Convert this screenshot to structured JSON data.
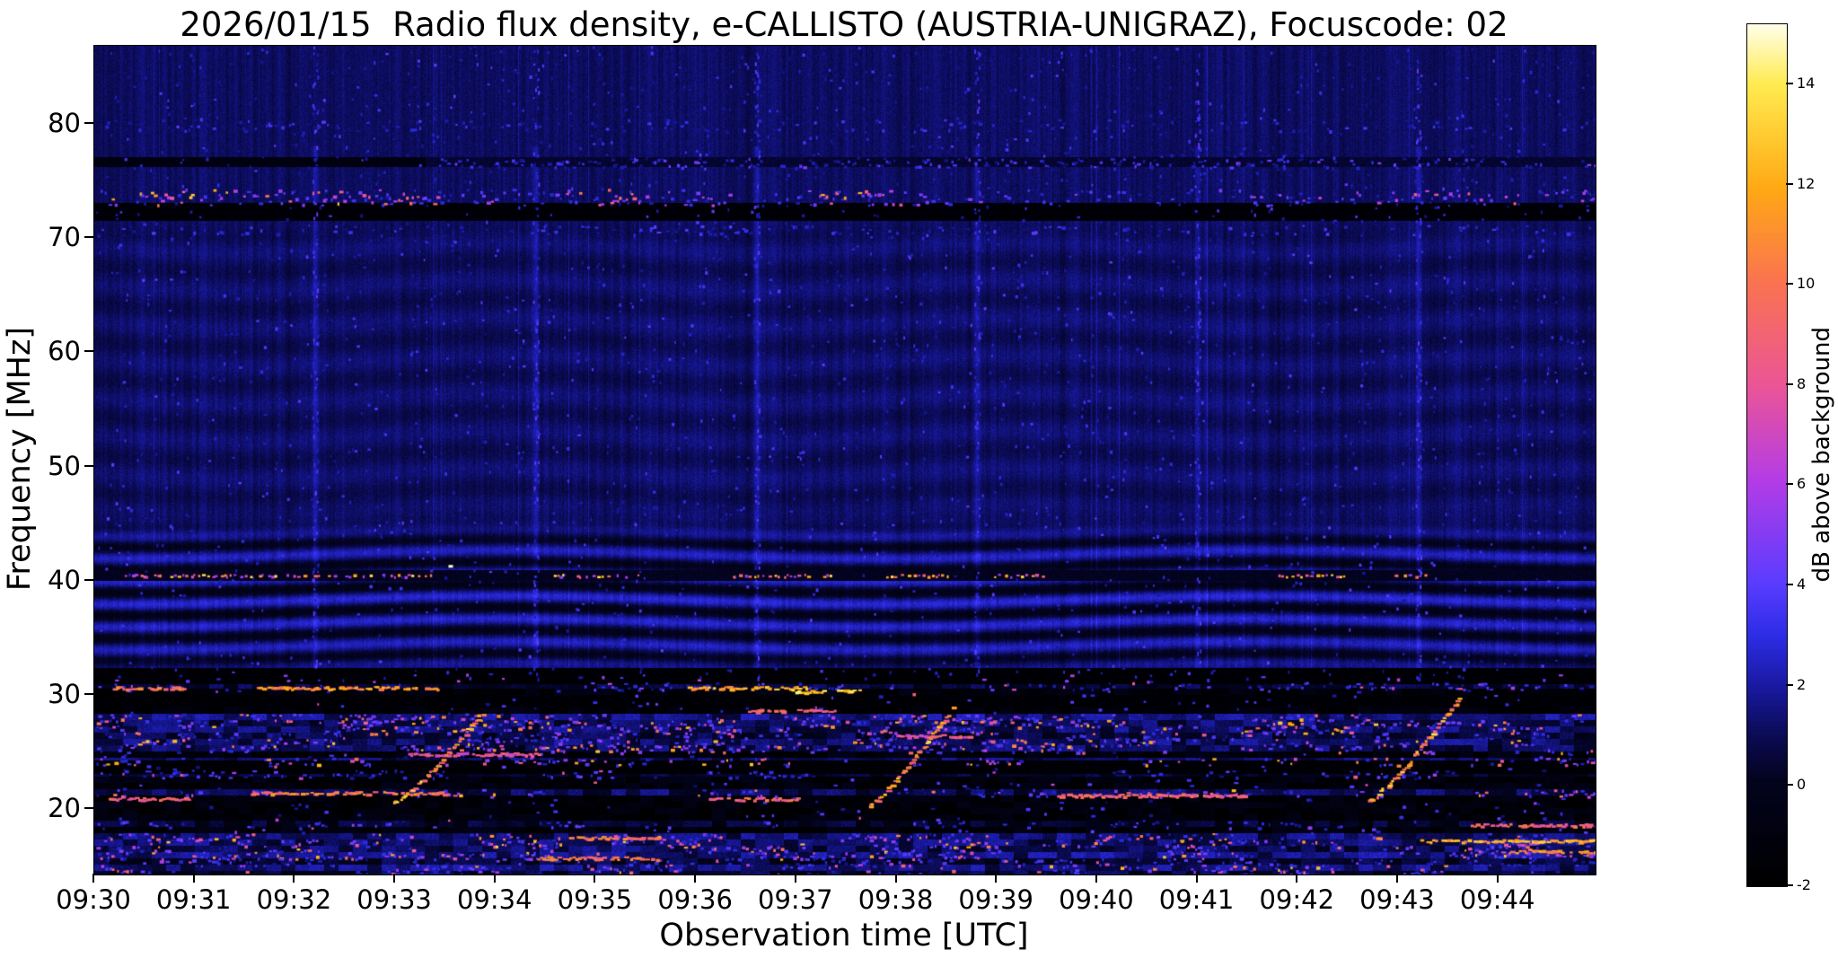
{
  "figure": {
    "title": "2026/01/15  Radio flux density, e-CALLISTO (AUSTRIA-UNIGRAZ), Focuscode: 02",
    "xlabel": "Observation time [UTC]",
    "ylabel": "Frequency [MHz]",
    "colorbar_label": "dB above background"
  },
  "chart_data": {
    "type": "heatmap",
    "title": "2026/01/15  Radio flux density, e-CALLISTO (AUSTRIA-UNIGRAZ), Focuscode: 02",
    "date": "2026/01/15",
    "station": "AUSTRIA-UNIGRAZ",
    "focuscode": "02",
    "xlabel": "Observation time [UTC]",
    "ylabel": "Frequency [MHz]",
    "x_ticks": [
      "09:30",
      "09:31",
      "09:32",
      "09:33",
      "09:34",
      "09:35",
      "09:36",
      "09:37",
      "09:38",
      "09:39",
      "09:40",
      "09:41",
      "09:42",
      "09:43",
      "09:44"
    ],
    "x_range": {
      "start_utc": "09:30",
      "minutes_shown": 14.97
    },
    "y_ticks": [
      20,
      30,
      40,
      50,
      60,
      70,
      80
    ],
    "y_range_mhz": [
      14.3,
      86.8
    ],
    "background_db": 1.15,
    "colorbar": {
      "label": "dB above background",
      "ticks": [
        -2,
        0,
        2,
        4,
        6,
        8,
        10,
        12,
        14
      ],
      "range_db": [
        -2,
        15.2
      ],
      "colormap_stops": [
        [
          0.0,
          "#000000"
        ],
        [
          0.12,
          "#03031e"
        ],
        [
          0.17,
          "#0a0a50"
        ],
        [
          0.23,
          "#1919a0"
        ],
        [
          0.29,
          "#2d2de6"
        ],
        [
          0.35,
          "#5a3cff"
        ],
        [
          0.47,
          "#b43ce6"
        ],
        [
          0.58,
          "#eb5596"
        ],
        [
          0.7,
          "#fa7350"
        ],
        [
          0.81,
          "#ffaa14"
        ],
        [
          0.93,
          "#ffeb50"
        ],
        [
          1.0,
          "#ffffeb"
        ]
      ]
    },
    "ripples": [
      {
        "f": [
          31.8,
          45.2
        ],
        "wavelength_mhz": 2.0,
        "amp_db": 1.05,
        "edge0": 1.5,
        "edge1": 2.0,
        "sway_period_min": 7.5,
        "sway_phase_min": 0.3,
        "sway_amp": 1.15,
        "boost": {
          "f": 38.5,
          "sigma2": 20,
          "amount": 0.45
        }
      },
      {
        "f": [
          45.2,
          71.5
        ],
        "wavelength_mhz": 3.3,
        "amp_db": 0.28,
        "edge0": 2.0,
        "edge1": 2.0,
        "sway_period_min": 5.2,
        "sway_phase_min": 1.4,
        "sway_amp": 0.9,
        "boost": null
      }
    ],
    "vertical_lines": {
      "times_min": [
        2.2,
        4.4,
        6.6,
        8.8,
        11.0,
        13.2
      ],
      "amp_db": 0.85,
      "f_range": [
        31.5,
        78.0
      ]
    },
    "features": [
      {
        "kind": "dark_band",
        "f": [
          71.6,
          73.0
        ],
        "t": [
          0,
          15
        ],
        "level": -1.5,
        "jitter": 1.0
      },
      {
        "kind": "speckle_band",
        "f": [
          72.9,
          74.3
        ],
        "segments": [
          {
            "t": [
              0.0,
              3.4
            ],
            "density": 0.75,
            "db": [
              3,
              13
            ]
          },
          {
            "t": [
              3.4,
              4.7
            ],
            "density": 0.55,
            "db": [
              2,
              8
            ]
          },
          {
            "t": [
              4.7,
              5.4
            ],
            "density": 0.7,
            "db": [
              3,
              12
            ]
          },
          {
            "t": [
              5.4,
              7.2
            ],
            "density": 0.5,
            "db": [
              2,
              7
            ]
          },
          {
            "t": [
              7.2,
              8.1
            ],
            "density": 0.65,
            "db": [
              3,
              12
            ]
          },
          {
            "t": [
              8.1,
              9.9
            ],
            "density": 0.45,
            "db": [
              2,
              7
            ]
          },
          {
            "t": [
              9.9,
              11.4
            ],
            "density": 0.2,
            "db": [
              2,
              5
            ]
          },
          {
            "t": [
              11.4,
              13.1
            ],
            "density": 0.45,
            "db": [
              2,
              7
            ]
          },
          {
            "t": [
              13.1,
              14.2
            ],
            "density": 0.6,
            "db": [
              3,
              11
            ]
          },
          {
            "t": [
              14.2,
              14.97
            ],
            "density": 0.45,
            "db": [
              2,
              7
            ]
          }
        ]
      },
      {
        "kind": "dark_band",
        "f": [
          76.3,
          77.0
        ],
        "t": [
          0,
          3.3
        ],
        "level": -0.9,
        "jitter": 0.5
      },
      {
        "kind": "dark_band",
        "f": [
          76.3,
          77.0
        ],
        "t": [
          3.3,
          15
        ],
        "level": 0.4,
        "jitter": 0.7
      },
      {
        "kind": "speckle_band",
        "f": [
          76.2,
          77.0
        ],
        "segments": [
          {
            "t": [
              3.3,
              14.97
            ],
            "density": 0.5,
            "db": [
              1.5,
              5
            ]
          }
        ]
      },
      {
        "kind": "speckle_band",
        "f": [
          79.4,
          80.4
        ],
        "segments": [
          {
            "t": [
              0,
              14.97
            ],
            "density": 0.3,
            "db": [
              1.5,
              4
            ]
          }
        ]
      },
      {
        "kind": "speckle_band",
        "f": [
          70.4,
          71.1
        ],
        "segments": [
          {
            "t": [
              0,
              14.97
            ],
            "density": 0.22,
            "db": [
              1.5,
              4
            ]
          },
          {
            "t": [
              5.4,
              6.6
            ],
            "density": 0.5,
            "db": [
              1.5,
              4.5
            ]
          }
        ]
      },
      {
        "kind": "dark_band",
        "f": [
          40.1,
          40.9
        ],
        "t": [
          0,
          15
        ],
        "level": 0.0,
        "jitter": 0.8
      },
      {
        "kind": "dot_row",
        "f": 40.5,
        "db": [
          5,
          14
        ],
        "clusters": [
          [
            0.25,
            3.3
          ],
          [
            4.55,
            5.4
          ],
          [
            6.3,
            7.3
          ],
          [
            7.85,
            8.45
          ],
          [
            8.95,
            9.4
          ],
          [
            11.75,
            12.45
          ],
          [
            12.9,
            13.45
          ]
        ]
      },
      {
        "kind": "dot",
        "t": 3.55,
        "f": 41.3,
        "db": 15,
        "w": 5,
        "h": 3
      },
      {
        "kind": "black_row",
        "f": [
          31.1,
          32.3
        ]
      },
      {
        "kind": "black_row",
        "f": [
          23.2,
          24.2
        ]
      },
      {
        "kind": "black_row",
        "f": [
          29.1,
          29.9
        ]
      },
      {
        "kind": "speckle_band",
        "f": [
          31.2,
          32.2
        ],
        "segments": [
          {
            "t": [
              0,
              14.97
            ],
            "density": 0.09,
            "db": [
              2,
              7
            ]
          }
        ]
      },
      {
        "kind": "rfi_region",
        "f": [
          14.3,
          31.1
        ],
        "row_height_mhz": 0.55
      },
      {
        "kind": "hseg",
        "f": 30.6,
        "t": [
          0.15,
          0.9
        ],
        "db": 10
      },
      {
        "kind": "hseg",
        "f": 30.6,
        "t": [
          1.6,
          3.4
        ],
        "db": 11
      },
      {
        "kind": "hseg",
        "f": 30.6,
        "t": [
          5.9,
          7.1
        ],
        "db": 12
      },
      {
        "kind": "hseg",
        "f": 30.3,
        "t": [
          6.9,
          7.6
        ],
        "db": 13
      },
      {
        "kind": "hseg",
        "f": 28.6,
        "t": [
          6.5,
          7.35
        ],
        "db": 9
      },
      {
        "kind": "hseg",
        "f": 21.4,
        "t": [
          1.5,
          3.5
        ],
        "db": 10
      },
      {
        "kind": "hseg",
        "f": 21.2,
        "t": [
          9.55,
          11.45
        ],
        "db": 9
      },
      {
        "kind": "hseg",
        "f": 20.9,
        "t": [
          0.1,
          0.9
        ],
        "db": 9
      },
      {
        "kind": "hseg",
        "f": 20.9,
        "t": [
          6.1,
          7.0
        ],
        "db": 9
      },
      {
        "kind": "hseg",
        "f": 24.8,
        "t": [
          3.1,
          4.4
        ],
        "db": 8
      },
      {
        "kind": "hseg",
        "f": 26.4,
        "t": [
          7.9,
          8.7
        ],
        "db": 8
      },
      {
        "kind": "hseg",
        "f": 17.5,
        "t": [
          4.7,
          5.6
        ],
        "db": 10
      },
      {
        "kind": "hseg",
        "f": 15.7,
        "t": [
          4.4,
          5.6
        ],
        "db": 10
      },
      {
        "kind": "hseg",
        "f": 17.2,
        "t": [
          13.2,
          14.97
        ],
        "db": 12
      },
      {
        "kind": "hseg",
        "f": 18.6,
        "t": [
          13.7,
          14.97
        ],
        "db": 9
      },
      {
        "kind": "hseg",
        "f": 16.3,
        "t": [
          14.1,
          14.97
        ],
        "db": 11
      },
      {
        "kind": "drift",
        "from": {
          "t": 2.98,
          "f": 20.6
        },
        "to": {
          "t": 3.85,
          "f": 28.4
        },
        "db": [
          8,
          14
        ]
      },
      {
        "kind": "drift",
        "from": {
          "t": 7.7,
          "f": 20.3
        },
        "to": {
          "t": 8.55,
          "f": 29.0
        },
        "db": [
          8,
          14
        ]
      },
      {
        "kind": "drift",
        "from": {
          "t": 12.7,
          "f": 20.8
        },
        "to": {
          "t": 13.6,
          "f": 29.8
        },
        "db": [
          8,
          14
        ]
      }
    ]
  }
}
